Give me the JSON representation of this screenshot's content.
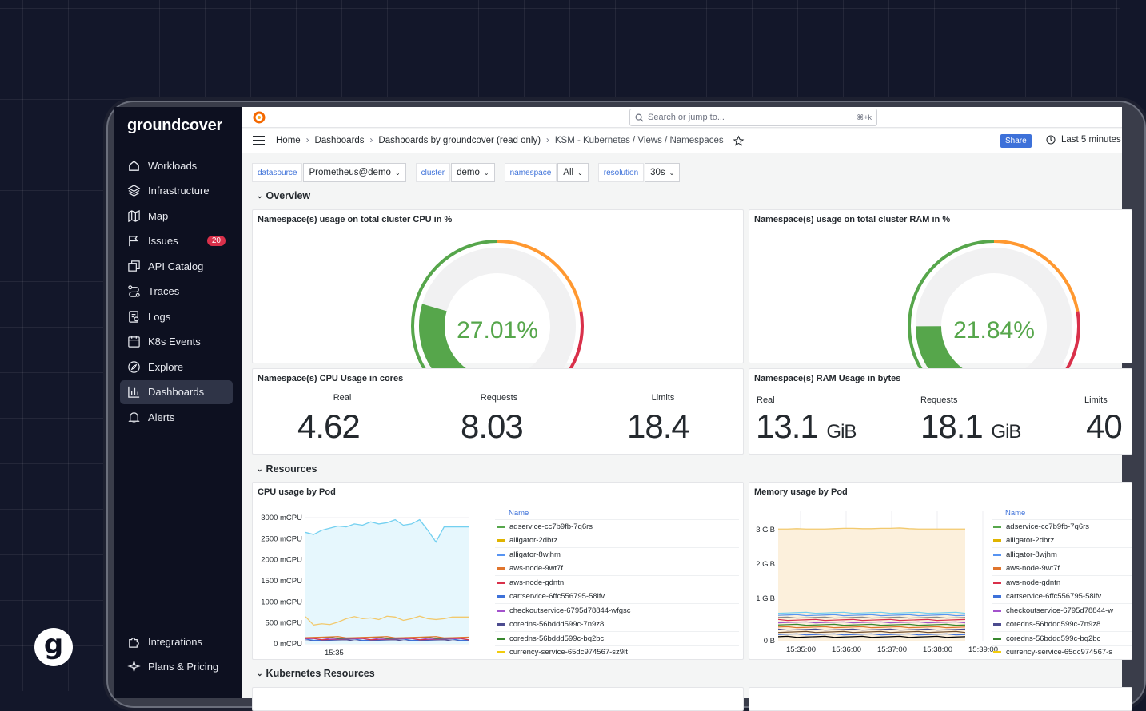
{
  "brand": "groundcover",
  "sidebar": {
    "items": [
      {
        "label": "Workloads",
        "icon": "home-icon"
      },
      {
        "label": "Infrastructure",
        "icon": "layers-icon"
      },
      {
        "label": "Map",
        "icon": "map-icon"
      },
      {
        "label": "Issues",
        "icon": "flag-icon",
        "badge": "20"
      },
      {
        "label": "API Catalog",
        "icon": "catalog-icon"
      },
      {
        "label": "Traces",
        "icon": "traces-icon"
      },
      {
        "label": "Logs",
        "icon": "logs-icon"
      },
      {
        "label": "K8s Events",
        "icon": "calendar-icon"
      },
      {
        "label": "Explore",
        "icon": "compass-icon"
      },
      {
        "label": "Dashboards",
        "icon": "dashboards-icon",
        "active": true
      },
      {
        "label": "Alerts",
        "icon": "bell-icon"
      }
    ],
    "bottom": [
      {
        "label": "Integrations",
        "icon": "puzzle-icon"
      },
      {
        "label": "Plans & Pricing",
        "icon": "sparkle-icon"
      }
    ]
  },
  "avatar_letter": "g",
  "search": {
    "placeholder": "Search or jump to...",
    "shortcut": "⌘+k"
  },
  "breadcrumb": [
    "Home",
    "Dashboards",
    "Dashboards by groundcover (read only)",
    "KSM - Kubernetes / Views / Namespaces"
  ],
  "share_label": "Share",
  "time_range": "Last 5 minutes",
  "variables": [
    {
      "label": "datasource",
      "value": "Prometheus@demo"
    },
    {
      "label": "cluster",
      "value": "demo"
    },
    {
      "label": "namespace",
      "value": "All"
    },
    {
      "label": "resolution",
      "value": "30s"
    }
  ],
  "rows": {
    "overview": "Overview",
    "resources": "Resources",
    "k8s": "Kubernetes Resources"
  },
  "panels": {
    "cpu_gauge": {
      "title": "Namespace(s) usage on total cluster CPU in %",
      "value": "27.01%",
      "fraction": 0.2701
    },
    "ram_gauge": {
      "title": "Namespace(s) usage on total cluster RAM in %",
      "value": "21.84%",
      "fraction": 0.2184
    },
    "cpu_cores": {
      "title": "Namespace(s) CPU Usage in cores",
      "stats": [
        {
          "label": "Real",
          "value": "4.62"
        },
        {
          "label": "Requests",
          "value": "8.03"
        },
        {
          "label": "Limits",
          "value": "18.4"
        }
      ]
    },
    "ram_bytes": {
      "title": "Namespace(s) RAM Usage in bytes",
      "stats": [
        {
          "label": "Real",
          "value": "13.1",
          "unit": "GiB"
        },
        {
          "label": "Requests",
          "value": "18.1",
          "unit": "GiB"
        },
        {
          "label": "Limits",
          "value": "40"
        }
      ]
    },
    "cpu_pod": {
      "title": "CPU usage by Pod",
      "yticks": [
        "3000 mCPU",
        "2500 mCPU",
        "2000 mCPU",
        "1500 mCPU",
        "1000 mCPU",
        "500 mCPU",
        "0 mCPU"
      ],
      "xticks": [
        "15:35"
      ]
    },
    "mem_pod": {
      "title": "Memory usage by Pod",
      "yticks": [
        "3 GiB",
        "2 GiB",
        "1 GiB",
        "0 B"
      ],
      "xticks": [
        "15:35:00",
        "15:36:00",
        "15:37:00",
        "15:38:00",
        "15:39:00"
      ]
    }
  },
  "legend": {
    "header": "Name",
    "items": [
      {
        "name": "adservice-cc7b9fb-7q6rs",
        "color": "#56a64b"
      },
      {
        "name": "alligator-2dbrz",
        "color": "#e0b400"
      },
      {
        "name": "alligator-8wjhm",
        "color": "#5794f2"
      },
      {
        "name": "aws-node-9wt7f",
        "color": "#e0752d"
      },
      {
        "name": "aws-node-gdntn",
        "color": "#d9304a"
      },
      {
        "name": "cartservice-6ffc556795-58lfv",
        "color": "#3d71d9"
      },
      {
        "name": "checkoutservice-6795d78844-wfgsc",
        "color": "#a352cc"
      },
      {
        "name": "coredns-56bddd599c-7n9z8",
        "color": "#4c4c8f"
      },
      {
        "name": "coredns-56bddd599c-bq2bc",
        "color": "#37872d"
      },
      {
        "name": "currency-service-65dc974567-sz9lt",
        "color": "#f2cc0c"
      }
    ]
  },
  "legend_mem": {
    "items": [
      {
        "name": "adservice-cc7b9fb-7q6rs"
      },
      {
        "name": "alligator-2dbrz"
      },
      {
        "name": "alligator-8wjhm"
      },
      {
        "name": "aws-node-9wt7f"
      },
      {
        "name": "aws-node-gdntn"
      },
      {
        "name": "cartservice-6ffc556795-58lfv"
      },
      {
        "name": "checkoutservice-6795d78844-w"
      },
      {
        "name": "coredns-56bddd599c-7n9z8"
      },
      {
        "name": "coredns-56bddd599c-bq2bc"
      },
      {
        "name": "currency-service-65dc974567-s"
      }
    ]
  }
}
